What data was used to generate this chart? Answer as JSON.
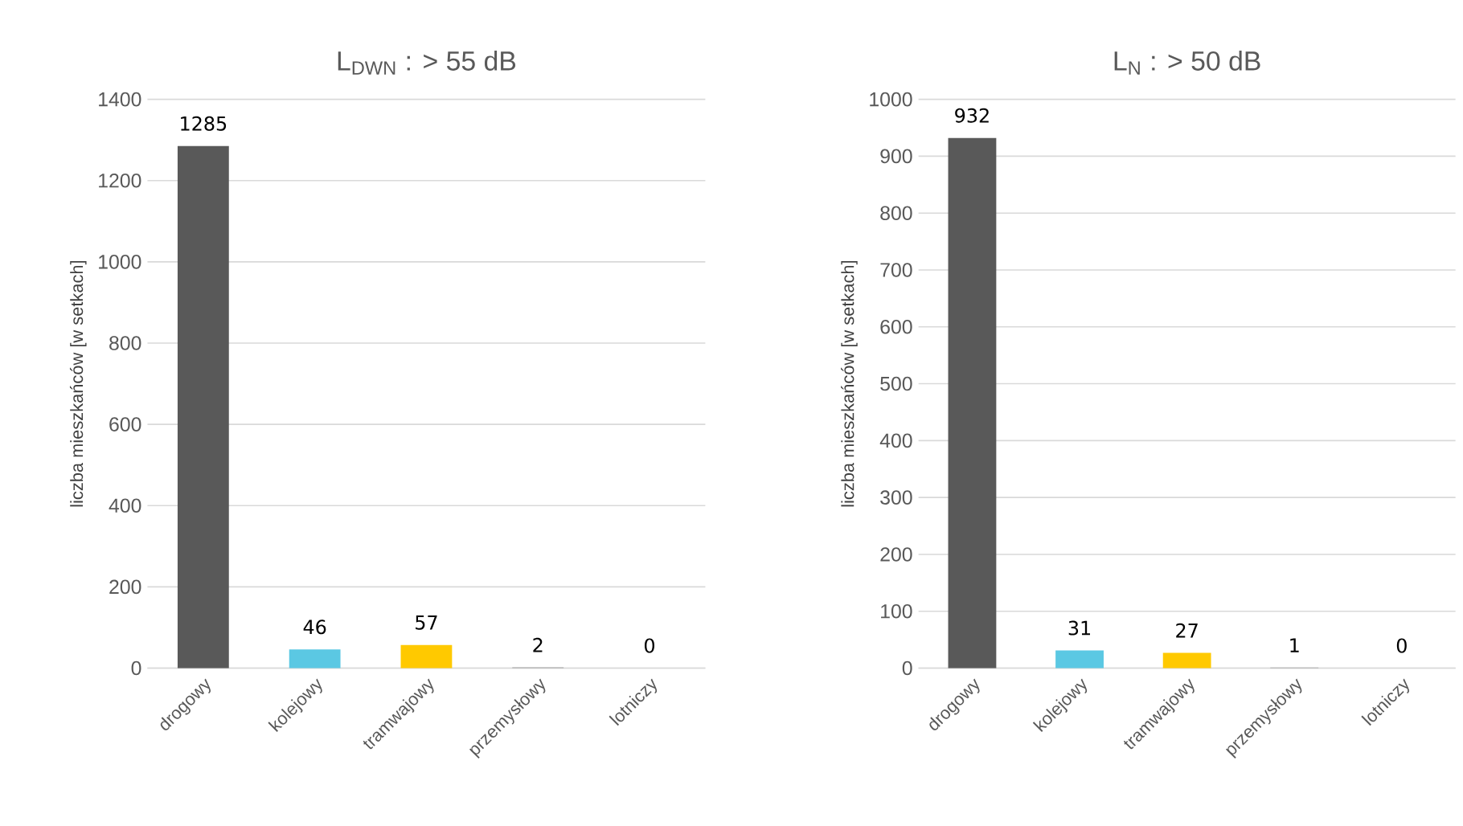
{
  "chart_data": [
    {
      "type": "bar",
      "title": "L$_{DWN}$ : > 55 dB",
      "ylabel": "liczba mieszkańców [w setkach]",
      "categories": [
        "drogowy",
        "kolejowy",
        "tramwajowy",
        "przemysłowy",
        "lotniczy"
      ],
      "values": [
        1285,
        46,
        57,
        2,
        0
      ],
      "colors": [
        "#595959",
        "#5bc8e3",
        "#ffc900",
        "#a5a5a5",
        "#4472c4"
      ],
      "ylim": [
        0,
        1400
      ],
      "yticks": [
        0,
        200,
        400,
        600,
        800,
        1000,
        1200,
        1400
      ],
      "grid": "y",
      "data_labels": true
    },
    {
      "type": "bar",
      "title": "L$_{N}$ : > 50 dB",
      "ylabel": "liczba mieszkańców [w setkach]",
      "categories": [
        "drogowy",
        "kolejowy",
        "tramwajowy",
        "przemysłowy",
        "lotniczy"
      ],
      "values": [
        932,
        31,
        27,
        1,
        0
      ],
      "colors": [
        "#595959",
        "#5bc8e3",
        "#ffc900",
        "#a5a5a5",
        "#4472c4"
      ],
      "ylim": [
        0,
        1000
      ],
      "yticks": [
        0,
        100,
        200,
        300,
        400,
        500,
        600,
        700,
        800,
        900,
        1000
      ],
      "grid": "y",
      "data_labels": true
    }
  ]
}
